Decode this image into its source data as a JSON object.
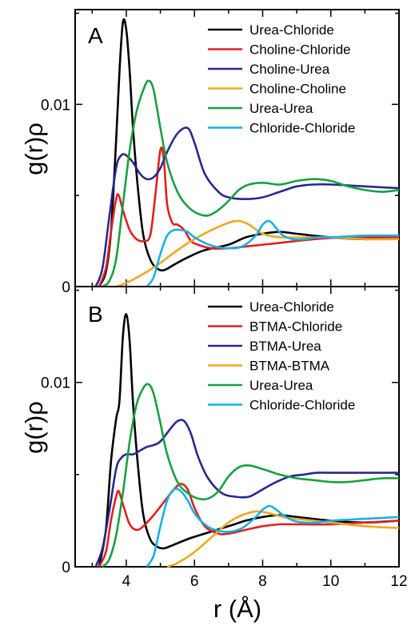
{
  "chart_data": [
    {
      "type": "line",
      "panel_label": "A",
      "ylabel": "g(r)ρ",
      "xlabel": "",
      "xlim": [
        2.5,
        12
      ],
      "ylim": [
        0,
        0.0152
      ],
      "xticks": [
        "4",
        "6",
        "8",
        "10",
        "12"
      ],
      "yticks": [
        {
          "value": 0,
          "label": "0"
        },
        {
          "value": 0.01,
          "label": "0.01"
        }
      ],
      "legend_position": "top-right",
      "series": [
        {
          "name": "Urea-Chloride",
          "color": "#000000",
          "x": [
            3.2,
            3.4,
            3.55,
            3.7,
            3.8,
            3.9,
            4.0,
            4.1,
            4.2,
            4.35,
            4.5,
            4.7,
            4.9,
            5.1,
            5.4,
            5.8,
            6.3,
            7.0,
            7.5,
            8.0,
            8.5,
            9.0,
            10.0,
            11.0,
            12.0
          ],
          "y": [
            0.0,
            0.0008,
            0.003,
            0.008,
            0.0118,
            0.0145,
            0.0141,
            0.0118,
            0.0086,
            0.0052,
            0.0028,
            0.0015,
            0.001,
            0.0009,
            0.0012,
            0.0016,
            0.002,
            0.0023,
            0.0027,
            0.0029,
            0.003,
            0.0029,
            0.0027,
            0.0026,
            0.0027
          ]
        },
        {
          "name": "Choline-Chloride",
          "color": "#e02020",
          "x": [
            3.2,
            3.4,
            3.55,
            3.7,
            3.78,
            3.9,
            4.1,
            4.3,
            4.5,
            4.7,
            4.85,
            5.0,
            5.1,
            5.2,
            5.35,
            5.5,
            5.7,
            5.9,
            6.1,
            6.5,
            7.0,
            7.5,
            8.5,
            9.5,
            10.5,
            12.0
          ],
          "y": [
            0.0,
            0.001,
            0.003,
            0.0048,
            0.005,
            0.0042,
            0.0031,
            0.0026,
            0.0025,
            0.0028,
            0.005,
            0.0075,
            0.007,
            0.0045,
            0.0035,
            0.0034,
            0.0031,
            0.0025,
            0.0023,
            0.0021,
            0.0021,
            0.0022,
            0.0024,
            0.0026,
            0.0027,
            0.0027
          ]
        },
        {
          "name": "Choline-Urea",
          "color": "#282890",
          "x": [
            3.1,
            3.3,
            3.5,
            3.7,
            3.85,
            4.0,
            4.2,
            4.4,
            4.6,
            4.8,
            5.0,
            5.2,
            5.5,
            5.8,
            6.0,
            6.3,
            6.7,
            7.0,
            7.5,
            8.0,
            8.5,
            9.0,
            9.5,
            10.0,
            11.0,
            12.0
          ],
          "y": [
            0.0,
            0.001,
            0.0038,
            0.0065,
            0.0072,
            0.0072,
            0.0068,
            0.0062,
            0.0059,
            0.006,
            0.0065,
            0.0074,
            0.0084,
            0.0087,
            0.0079,
            0.0062,
            0.0052,
            0.0049,
            0.0048,
            0.0049,
            0.0052,
            0.0055,
            0.0056,
            0.0056,
            0.0055,
            0.0054
          ]
        },
        {
          "name": "Choline-Choline",
          "color": "#f0a820",
          "x": [
            3.7,
            4.0,
            4.5,
            5.0,
            5.5,
            6.0,
            6.5,
            7.0,
            7.3,
            7.6,
            8.0,
            8.5,
            9.0,
            9.5,
            10.0,
            11.0,
            12.0
          ],
          "y": [
            0.0,
            0.0002,
            0.0007,
            0.0013,
            0.002,
            0.0026,
            0.0031,
            0.0035,
            0.0036,
            0.0034,
            0.0029,
            0.0027,
            0.0027,
            0.0027,
            0.0027,
            0.0026,
            0.0026
          ]
        },
        {
          "name": "Urea-Urea",
          "color": "#17a040",
          "x": [
            3.3,
            3.5,
            3.7,
            3.9,
            4.1,
            4.3,
            4.5,
            4.65,
            4.8,
            5.0,
            5.2,
            5.5,
            5.8,
            6.1,
            6.4,
            6.7,
            7.0,
            7.3,
            7.6,
            8.0,
            8.5,
            9.0,
            9.5,
            10.0,
            10.5,
            11.0,
            11.5,
            12.0
          ],
          "y": [
            0.0,
            0.0003,
            0.0015,
            0.0045,
            0.0075,
            0.0096,
            0.0108,
            0.0113,
            0.0108,
            0.0087,
            0.0068,
            0.0052,
            0.0044,
            0.004,
            0.0039,
            0.0042,
            0.0047,
            0.0053,
            0.0056,
            0.0057,
            0.0056,
            0.0058,
            0.0059,
            0.0058,
            0.0055,
            0.0053,
            0.0052,
            0.0053
          ]
        },
        {
          "name": "Chloride-Chloride",
          "color": "#18b0e8",
          "x": [
            4.6,
            4.8,
            5.0,
            5.2,
            5.4,
            5.6,
            5.8,
            6.0,
            6.3,
            6.6,
            7.0,
            7.4,
            7.8,
            8.0,
            8.2,
            8.4,
            8.6,
            8.9,
            9.2,
            9.6,
            10.0,
            11.0,
            12.0
          ],
          "y": [
            0.0,
            0.0005,
            0.0018,
            0.0028,
            0.0031,
            0.0031,
            0.003,
            0.0027,
            0.0024,
            0.0022,
            0.0021,
            0.0022,
            0.0028,
            0.0034,
            0.0036,
            0.0032,
            0.0028,
            0.0026,
            0.0026,
            0.0027,
            0.0027,
            0.0028,
            0.0028
          ]
        }
      ]
    },
    {
      "type": "line",
      "panel_label": "B",
      "ylabel": "g(r)ρ",
      "xlabel": "r (Å)",
      "xlim": [
        2.5,
        12
      ],
      "ylim": [
        0,
        0.0152
      ],
      "xticks": [
        "4",
        "6",
        "8",
        "10",
        "12"
      ],
      "yticks": [
        {
          "value": 0,
          "label": "0"
        },
        {
          "value": 0.01,
          "label": "0.01"
        }
      ],
      "legend_position": "top-right",
      "series": [
        {
          "name": "Urea-Chloride",
          "color": "#000000",
          "x": [
            3.2,
            3.4,
            3.55,
            3.7,
            3.8,
            3.9,
            4.0,
            4.1,
            4.2,
            4.35,
            4.5,
            4.7,
            4.9,
            5.1,
            5.4,
            5.8,
            6.3,
            7.0,
            7.5,
            8.0,
            8.5,
            9.0,
            10.0,
            11.0,
            12.0
          ],
          "y": [
            0.0,
            0.002,
            0.0057,
            0.008,
            0.009,
            0.0125,
            0.0137,
            0.0122,
            0.0088,
            0.0053,
            0.0028,
            0.0015,
            0.0011,
            0.001,
            0.0012,
            0.0015,
            0.0018,
            0.0022,
            0.0025,
            0.0027,
            0.0028,
            0.0027,
            0.0025,
            0.0024,
            0.0025
          ]
        },
        {
          "name": "BTMA-Chloride",
          "color": "#e02020",
          "x": [
            3.2,
            3.4,
            3.55,
            3.7,
            3.78,
            3.9,
            4.1,
            4.3,
            4.5,
            4.8,
            5.1,
            5.4,
            5.6,
            5.8,
            6.0,
            6.3,
            6.7,
            7.0,
            7.5,
            8.0,
            8.5,
            9.0,
            10.0,
            11.0,
            12.0
          ],
          "y": [
            0.0,
            0.0008,
            0.0025,
            0.0038,
            0.0041,
            0.0034,
            0.0023,
            0.002,
            0.0022,
            0.0028,
            0.0035,
            0.0042,
            0.0045,
            0.0042,
            0.0032,
            0.0022,
            0.0018,
            0.0018,
            0.002,
            0.0022,
            0.0023,
            0.0023,
            0.0023,
            0.0024,
            0.0025
          ]
        },
        {
          "name": "BTMA-Urea",
          "color": "#282890",
          "x": [
            3.1,
            3.3,
            3.5,
            3.7,
            3.85,
            4.0,
            4.2,
            4.4,
            4.6,
            4.8,
            5.0,
            5.3,
            5.5,
            5.7,
            5.9,
            6.1,
            6.4,
            6.8,
            7.2,
            7.6,
            8.0,
            8.4,
            8.8,
            9.2,
            9.6,
            10.0,
            11.0,
            12.0
          ],
          "y": [
            0.0,
            0.001,
            0.003,
            0.0053,
            0.0059,
            0.0061,
            0.0061,
            0.0063,
            0.0065,
            0.0066,
            0.0068,
            0.0075,
            0.0079,
            0.0079,
            0.0072,
            0.006,
            0.0048,
            0.004,
            0.0038,
            0.0038,
            0.0042,
            0.0046,
            0.0049,
            0.005,
            0.0051,
            0.0051,
            0.0051,
            0.0051
          ]
        },
        {
          "name": "BTMA-BTMA",
          "color": "#f0a820",
          "x": [
            5.2,
            5.5,
            6.0,
            6.5,
            7.0,
            7.4,
            7.8,
            8.2,
            8.6,
            9.0,
            9.5,
            10.0,
            11.0,
            12.0
          ],
          "y": [
            0.0,
            0.0002,
            0.0008,
            0.0016,
            0.0024,
            0.0028,
            0.003,
            0.0029,
            0.0027,
            0.0026,
            0.0025,
            0.0024,
            0.0022,
            0.0021
          ]
        },
        {
          "name": "Urea-Urea",
          "color": "#17a040",
          "x": [
            3.3,
            3.5,
            3.7,
            3.9,
            4.1,
            4.3,
            4.5,
            4.65,
            4.8,
            5.0,
            5.2,
            5.5,
            5.8,
            6.1,
            6.4,
            6.7,
            7.0,
            7.3,
            7.6,
            8.0,
            8.5,
            9.0,
            9.5,
            10.0,
            10.5,
            11.0,
            11.5,
            12.0
          ],
          "y": [
            0.0,
            0.0004,
            0.0017,
            0.004,
            0.0068,
            0.0088,
            0.0097,
            0.0099,
            0.0094,
            0.0078,
            0.0061,
            0.0046,
            0.004,
            0.0037,
            0.0037,
            0.0041,
            0.0049,
            0.0054,
            0.0055,
            0.0053,
            0.005,
            0.0048,
            0.0047,
            0.0046,
            0.0046,
            0.0047,
            0.0048,
            0.0048
          ]
        },
        {
          "name": "Chloride-Chloride",
          "color": "#18b0e8",
          "x": [
            4.6,
            4.8,
            5.0,
            5.2,
            5.4,
            5.6,
            5.8,
            6.0,
            6.3,
            6.6,
            7.0,
            7.4,
            7.8,
            8.0,
            8.2,
            8.4,
            8.6,
            8.9,
            9.2,
            9.6,
            10.0,
            11.0,
            12.0
          ],
          "y": [
            0.0,
            0.0006,
            0.0022,
            0.0036,
            0.0042,
            0.0041,
            0.0036,
            0.0029,
            0.0023,
            0.002,
            0.0019,
            0.0021,
            0.0027,
            0.0031,
            0.0033,
            0.0031,
            0.0028,
            0.0025,
            0.0024,
            0.0024,
            0.0025,
            0.0026,
            0.0027
          ]
        }
      ]
    }
  ]
}
